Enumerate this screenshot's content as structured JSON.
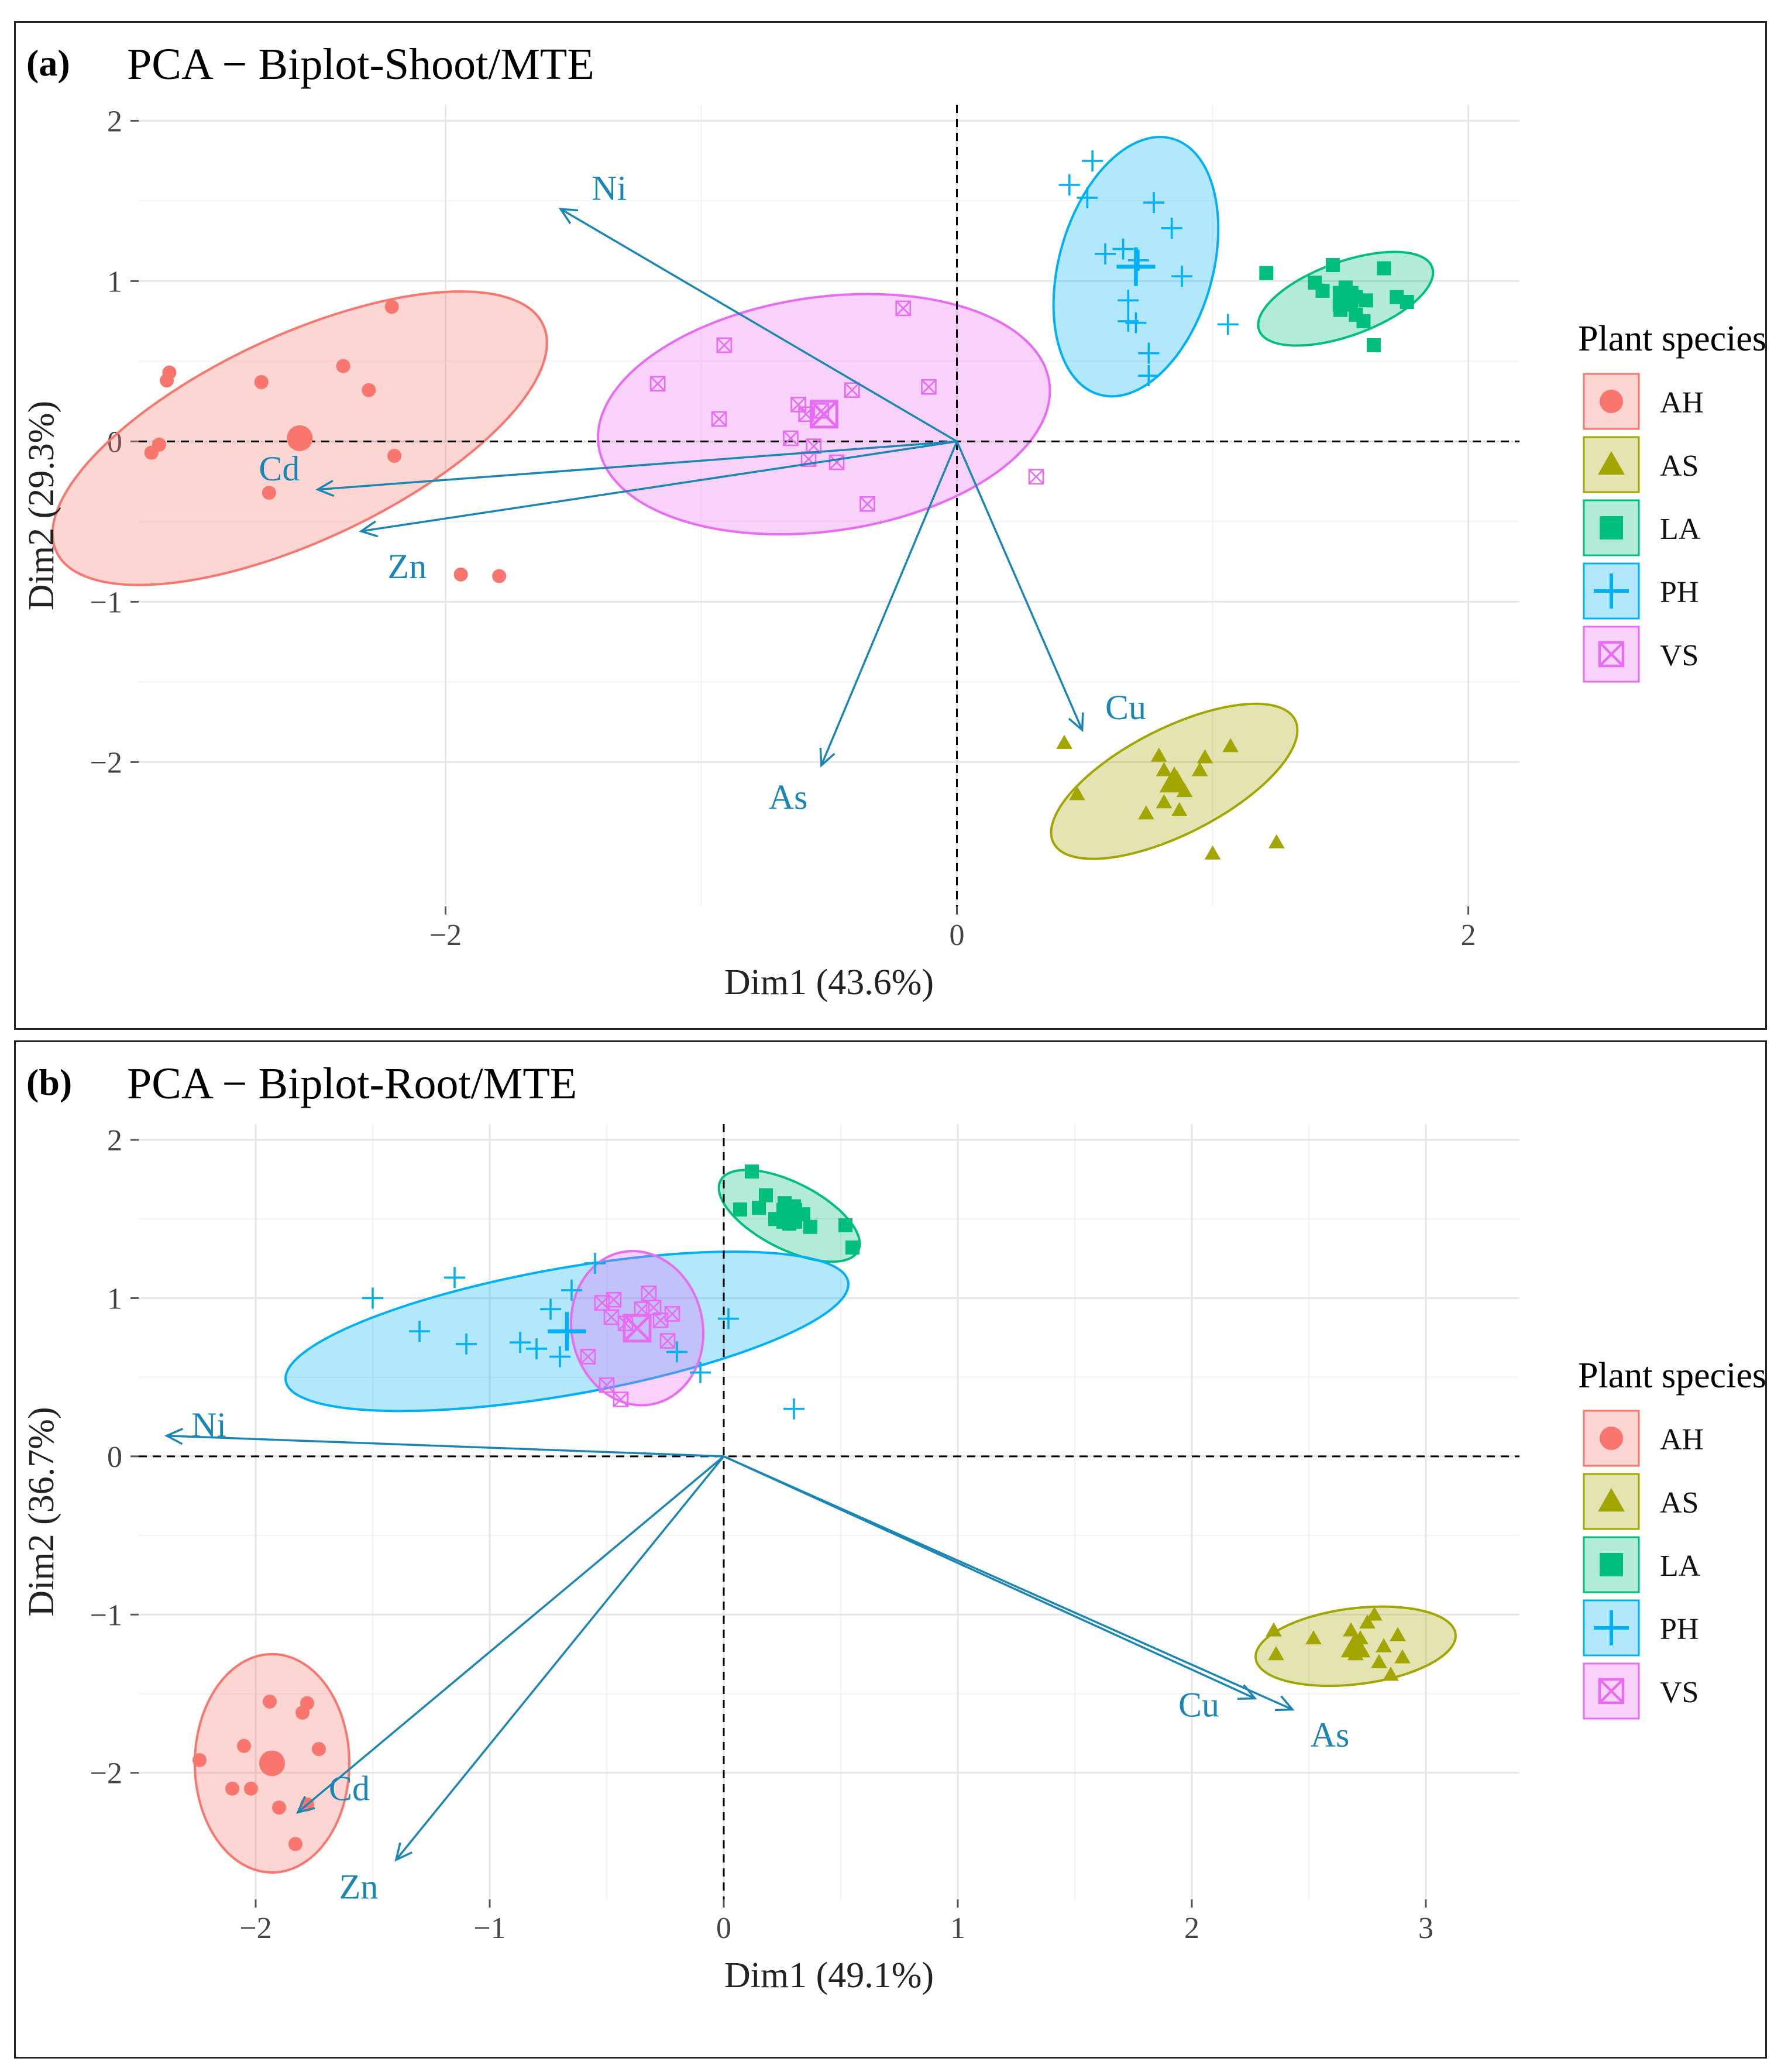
{
  "legend": {
    "title": "Plant species",
    "items": [
      {
        "key": "AH",
        "color": "#f8766d",
        "shape": "circle"
      },
      {
        "key": "AS",
        "color": "#a3a500",
        "shape": "triangle"
      },
      {
        "key": "LA",
        "color": "#00bf7d",
        "shape": "square"
      },
      {
        "key": "PH",
        "color": "#00b0f6",
        "shape": "plus"
      },
      {
        "key": "VS",
        "color": "#e76bf3",
        "shape": "boxcross"
      }
    ]
  },
  "arrow_color": "#1b86b4",
  "chart_data": [
    {
      "type": "scatter",
      "panel_label": "(a)",
      "title": "PCA − Biplot-Shoot/MTE",
      "xlabel": "Dim1 (43.6%)",
      "ylabel": "Dim2 (29.3%)",
      "xlim": [
        -3.2,
        2.2
      ],
      "ylim": [
        -2.9,
        2.1
      ],
      "xticks": [
        {
          "v": -2,
          "label": "−2"
        },
        {
          "v": 0,
          "label": "0"
        },
        {
          "v": 2,
          "label": "2"
        }
      ],
      "yticks": [
        {
          "v": -2,
          "label": "−2"
        },
        {
          "v": -1,
          "label": "−1"
        },
        {
          "v": 0,
          "label": "0"
        },
        {
          "v": 1,
          "label": "1"
        },
        {
          "v": 2,
          "label": "2"
        }
      ],
      "variables": [
        {
          "name": "Ni",
          "x": -1.55,
          "y": 1.45,
          "label_x": -1.36,
          "label_y": 1.58
        },
        {
          "name": "Cd",
          "x": -2.5,
          "y": -0.3,
          "label_x": -2.65,
          "label_y": -0.17
        },
        {
          "name": "Zn",
          "x": -2.33,
          "y": -0.56,
          "label_x": -2.15,
          "label_y": -0.78
        },
        {
          "name": "As",
          "x": -0.53,
          "y": -2.02,
          "label_x": -0.66,
          "label_y": -2.22
        },
        {
          "name": "Cu",
          "x": 0.49,
          "y": -1.8,
          "label_x": 0.66,
          "label_y": -1.66
        }
      ],
      "groups": [
        {
          "key": "AH",
          "center": [
            -2.57,
            0.02
          ],
          "ellipse": {
            "cx": -2.57,
            "cy": 0.02,
            "rx": 1.05,
            "ry": 0.64,
            "angle": -25
          },
          "points": [
            [
              -2.21,
              0.84
            ],
            [
              -3.08,
              0.43
            ],
            [
              -3.09,
              0.38
            ],
            [
              -2.4,
              0.47
            ],
            [
              -2.72,
              0.37
            ],
            [
              -2.3,
              0.32
            ],
            [
              -3.12,
              -0.02
            ],
            [
              -3.15,
              -0.07
            ],
            [
              -2.2,
              -0.09
            ],
            [
              -2.69,
              -0.32
            ],
            [
              -1.94,
              -0.83
            ],
            [
              -1.79,
              -0.84
            ]
          ]
        },
        {
          "key": "AS",
          "center": [
            0.85,
            -2.12
          ],
          "ellipse": {
            "cx": 0.85,
            "cy": -2.12,
            "rx": 0.53,
            "ry": 0.33,
            "angle": -27
          },
          "points": [
            [
              0.42,
              -1.88
            ],
            [
              0.47,
              -2.2
            ],
            [
              0.79,
              -1.96
            ],
            [
              0.81,
              -2.05
            ],
            [
              0.86,
              -2.1
            ],
            [
              0.89,
              -2.18
            ],
            [
              0.95,
              -2.05
            ],
            [
              0.97,
              -1.97
            ],
            [
              1.07,
              -1.9
            ],
            [
              0.74,
              -2.32
            ],
            [
              0.81,
              -2.25
            ],
            [
              0.87,
              -2.3
            ],
            [
              1.0,
              -2.57
            ],
            [
              1.25,
              -2.5
            ]
          ]
        },
        {
          "key": "LA",
          "center": [
            1.52,
            0.89
          ],
          "ellipse": {
            "cx": 1.52,
            "cy": 0.89,
            "rx": 0.36,
            "ry": 0.23,
            "angle": -20
          },
          "points": [
            [
              1.21,
              1.05
            ],
            [
              1.4,
              0.99
            ],
            [
              1.43,
              0.94
            ],
            [
              1.47,
              1.1
            ],
            [
              1.52,
              0.96
            ],
            [
              1.56,
              0.9
            ],
            [
              1.6,
              0.88
            ],
            [
              1.67,
              1.08
            ],
            [
              1.72,
              0.9
            ],
            [
              1.76,
              0.87
            ],
            [
              1.5,
              0.82
            ],
            [
              1.56,
              0.79
            ],
            [
              1.59,
              0.75
            ],
            [
              1.63,
              0.6
            ]
          ]
        },
        {
          "key": "PH",
          "center": [
            0.7,
            1.09
          ],
          "ellipse": {
            "cx": 0.7,
            "cy": 1.09,
            "rx": 0.3,
            "ry": 0.83,
            "angle": 16
          },
          "points": [
            [
              0.53,
              1.75
            ],
            [
              0.44,
              1.6
            ],
            [
              0.51,
              1.52
            ],
            [
              0.77,
              1.49
            ],
            [
              0.84,
              1.33
            ],
            [
              0.58,
              1.17
            ],
            [
              0.65,
              1.2
            ],
            [
              0.71,
              1.13
            ],
            [
              0.88,
              1.03
            ],
            [
              0.67,
              0.88
            ],
            [
              0.67,
              0.75
            ],
            [
              0.7,
              0.74
            ],
            [
              0.75,
              0.55
            ],
            [
              0.75,
              0.41
            ],
            [
              1.06,
              0.73
            ]
          ]
        },
        {
          "key": "VS",
          "center": [
            -0.52,
            0.17
          ],
          "ellipse": {
            "cx": -0.52,
            "cy": 0.17,
            "rx": 0.89,
            "ry": 0.73,
            "angle": -8
          },
          "points": [
            [
              -0.21,
              0.83
            ],
            [
              -0.91,
              0.6
            ],
            [
              -1.17,
              0.36
            ],
            [
              -0.11,
              0.34
            ],
            [
              -0.41,
              0.32
            ],
            [
              -0.62,
              0.23
            ],
            [
              -0.59,
              0.17
            ],
            [
              -0.53,
              0.19
            ],
            [
              -0.93,
              0.14
            ],
            [
              -0.65,
              0.02
            ],
            [
              -0.56,
              -0.03
            ],
            [
              -0.47,
              -0.13
            ],
            [
              -0.58,
              -0.11
            ],
            [
              -0.35,
              -0.39
            ],
            [
              0.31,
              -0.22
            ]
          ]
        }
      ]
    },
    {
      "type": "scatter",
      "panel_label": "(b)",
      "title": "PCA − Biplot-Root/MTE",
      "xlabel": "Dim1 (49.1%)",
      "ylabel": "Dim2 (36.7%)",
      "xlim": [
        -2.5,
        3.4
      ],
      "ylim": [
        -2.8,
        2.1
      ],
      "xticks": [
        {
          "v": -2,
          "label": "−2"
        },
        {
          "v": -1,
          "label": "−1"
        },
        {
          "v": 0,
          "label": "0"
        },
        {
          "v": 1,
          "label": "1"
        },
        {
          "v": 2,
          "label": "2"
        },
        {
          "v": 3,
          "label": "3"
        }
      ],
      "yticks": [
        {
          "v": -2,
          "label": "−2"
        },
        {
          "v": -1,
          "label": "−1"
        },
        {
          "v": 0,
          "label": "0"
        },
        {
          "v": 1,
          "label": "1"
        },
        {
          "v": 2,
          "label": "2"
        }
      ],
      "variables": [
        {
          "name": "Ni",
          "x": -2.38,
          "y": 0.13,
          "label_x": -2.2,
          "label_y": 0.2
        },
        {
          "name": "Cd",
          "x": -1.82,
          "y": -2.25,
          "label_x": -1.6,
          "label_y": -2.1
        },
        {
          "name": "Zn",
          "x": -1.4,
          "y": -2.55,
          "label_x": -1.56,
          "label_y": -2.72
        },
        {
          "name": "Cu",
          "x": 2.27,
          "y": -1.53,
          "label_x": 2.03,
          "label_y": -1.57
        },
        {
          "name": "As",
          "x": 2.43,
          "y": -1.6,
          "label_x": 2.59,
          "label_y": -1.76
        }
      ],
      "groups": [
        {
          "key": "AH",
          "center": [
            -1.93,
            -1.94
          ],
          "ellipse": {
            "cx": -1.93,
            "cy": -1.94,
            "rx": 0.33,
            "ry": 0.69,
            "angle": 0
          },
          "points": [
            [
              -1.94,
              -1.55
            ],
            [
              -1.78,
              -1.56
            ],
            [
              -1.8,
              -1.62
            ],
            [
              -2.05,
              -1.83
            ],
            [
              -1.73,
              -1.85
            ],
            [
              -2.24,
              -1.92
            ],
            [
              -2.1,
              -2.1
            ],
            [
              -2.02,
              -2.1
            ],
            [
              -1.9,
              -2.22
            ],
            [
              -1.78,
              -2.2
            ],
            [
              -1.83,
              -2.45
            ]
          ]
        },
        {
          "key": "AS",
          "center": [
            2.7,
            -1.2
          ],
          "ellipse": {
            "cx": 2.7,
            "cy": -1.2,
            "rx": 0.43,
            "ry": 0.24,
            "angle": -7
          },
          "points": [
            [
              2.35,
              -1.1
            ],
            [
              2.52,
              -1.15
            ],
            [
              2.68,
              -1.1
            ],
            [
              2.72,
              -1.15
            ],
            [
              2.75,
              -1.05
            ],
            [
              2.78,
              -1.0
            ],
            [
              2.82,
              -1.2
            ],
            [
              2.88,
              -1.13
            ],
            [
              2.7,
              -1.25
            ],
            [
              2.8,
              -1.3
            ],
            [
              2.9,
              -1.27
            ],
            [
              2.36,
              -1.25
            ],
            [
              2.85,
              -1.38
            ]
          ]
        },
        {
          "key": "LA",
          "center": [
            0.28,
            1.52
          ],
          "ellipse": {
            "cx": 0.28,
            "cy": 1.52,
            "rx": 0.33,
            "ry": 0.21,
            "angle": 27
          },
          "points": [
            [
              0.12,
              1.8
            ],
            [
              0.18,
              1.65
            ],
            [
              0.26,
              1.6
            ],
            [
              0.3,
              1.58
            ],
            [
              0.34,
              1.53
            ],
            [
              0.07,
              1.56
            ],
            [
              0.15,
              1.57
            ],
            [
              0.22,
              1.5
            ],
            [
              0.28,
              1.47
            ],
            [
              0.37,
              1.45
            ],
            [
              0.52,
              1.46
            ],
            [
              0.55,
              1.32
            ]
          ]
        },
        {
          "key": "PH",
          "center": [
            -0.67,
            0.79
          ],
          "ellipse": {
            "cx": -0.67,
            "cy": 0.79,
            "rx": 1.22,
            "ry": 0.4,
            "angle": -10
          },
          "points": [
            [
              -0.55,
              1.22
            ],
            [
              -1.15,
              1.13
            ],
            [
              -1.5,
              1.0
            ],
            [
              -0.65,
              1.05
            ],
            [
              -0.74,
              0.93
            ],
            [
              -1.3,
              0.79
            ],
            [
              -1.1,
              0.71
            ],
            [
              -0.87,
              0.72
            ],
            [
              -0.8,
              0.68
            ],
            [
              -0.7,
              0.63
            ],
            [
              0.02,
              0.87
            ],
            [
              -0.1,
              0.53
            ],
            [
              0.3,
              0.3
            ],
            [
              -0.2,
              0.66
            ]
          ]
        },
        {
          "key": "VS",
          "center": [
            -0.37,
            0.81
          ],
          "ellipse": {
            "cx": -0.37,
            "cy": 0.81,
            "rx": 0.28,
            "ry": 0.49,
            "angle": -12
          },
          "points": [
            [
              -0.52,
              0.97
            ],
            [
              -0.47,
              0.99
            ],
            [
              -0.32,
              1.03
            ],
            [
              -0.3,
              0.94
            ],
            [
              -0.22,
              0.9
            ],
            [
              -0.48,
              0.88
            ],
            [
              -0.42,
              0.84
            ],
            [
              -0.35,
              0.93
            ],
            [
              -0.27,
              0.86
            ],
            [
              -0.24,
              0.73
            ],
            [
              -0.58,
              0.63
            ],
            [
              -0.5,
              0.45
            ],
            [
              -0.44,
              0.36
            ]
          ]
        }
      ]
    }
  ]
}
